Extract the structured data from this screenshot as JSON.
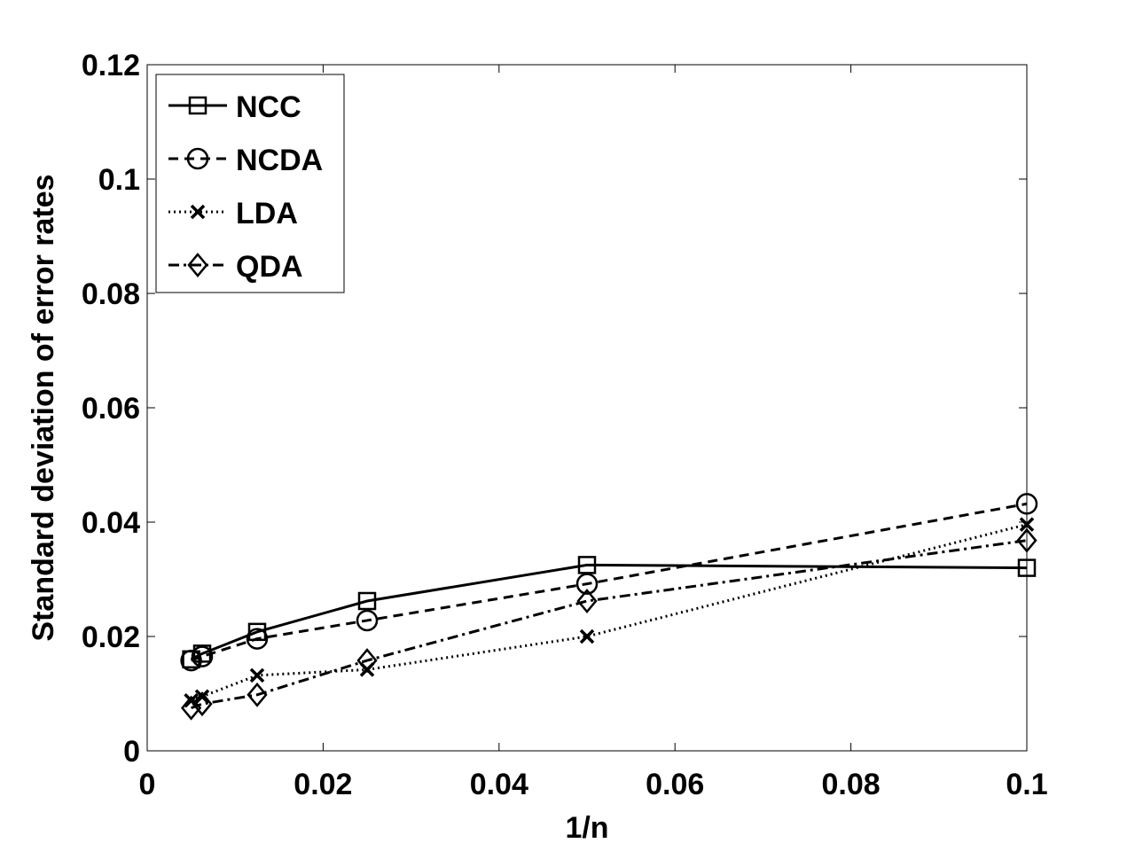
{
  "chart_data": {
    "type": "line",
    "xlabel": "1/n",
    "ylabel": "Standard deviation of  error rates",
    "xlim": [
      0,
      0.1
    ],
    "ylim": [
      0,
      0.12
    ],
    "xticks": [
      0,
      0.02,
      0.04,
      0.06,
      0.08,
      0.1
    ],
    "xtick_labels": [
      "0",
      "0.02",
      "0.04",
      "0.06",
      "0.08",
      "0.1"
    ],
    "yticks": [
      0,
      0.02,
      0.04,
      0.06,
      0.08,
      0.1,
      0.12
    ],
    "ytick_labels": [
      "0",
      "0.02",
      "0.04",
      "0.06",
      "0.08",
      "0.1",
      "0.12"
    ],
    "grid": false,
    "legend_position": "top-left",
    "x": [
      0.005,
      0.00625,
      0.0125,
      0.025,
      0.05,
      0.1
    ],
    "series": [
      {
        "name": "NCC",
        "marker": "square",
        "linestyle": "solid",
        "values": [
          0.016,
          0.017,
          0.0208,
          0.0262,
          0.0325,
          0.032
        ]
      },
      {
        "name": "NCDA",
        "marker": "circle",
        "linestyle": "dashed",
        "values": [
          0.0158,
          0.0165,
          0.0196,
          0.0228,
          0.0292,
          0.0432
        ]
      },
      {
        "name": "LDA",
        "marker": "x",
        "linestyle": "dotted",
        "values": [
          0.0088,
          0.0095,
          0.0132,
          0.0142,
          0.02,
          0.0396
        ]
      },
      {
        "name": "QDA",
        "marker": "diamond",
        "linestyle": "dashdot",
        "values": [
          0.0075,
          0.0082,
          0.0098,
          0.0158,
          0.0262,
          0.0368
        ]
      }
    ]
  }
}
